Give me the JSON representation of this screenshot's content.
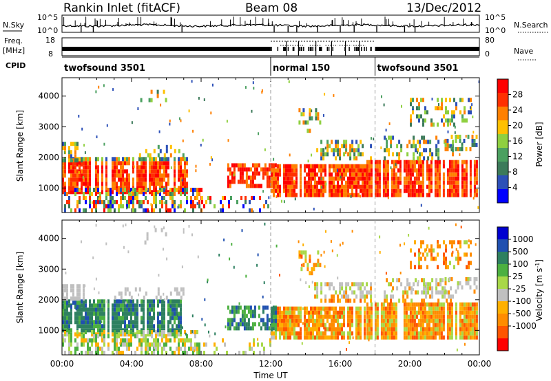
{
  "header": {
    "station": "Rankin Inlet (fitACF)",
    "beam": "Beam 08",
    "date": "13/Dec/2012"
  },
  "top_panels": {
    "nsky_label": "N.Sky",
    "nsky_ticks": [
      "10^5",
      "10^0"
    ],
    "nsky_right_ticks": [
      "10^5",
      "10^0"
    ],
    "nsearch_label": "N.Search",
    "freq_label_1": "Freq.",
    "freq_label_2": "[MHz]",
    "freq_ticks": [
      "18",
      "8"
    ],
    "nave_ticks": [
      "80",
      "0"
    ],
    "nave_label": "Nave",
    "cpid_label": "CPID",
    "modes": [
      {
        "name": "twofsound 3501",
        "start_h": 0,
        "end_h": 12
      },
      {
        "name": "normal 150",
        "start_h": 12,
        "end_h": 18
      },
      {
        "name": "twofsound 3501",
        "start_h": 18,
        "end_h": 24
      }
    ]
  },
  "colors": {
    "power_scale": [
      "#0000ff",
      "#2c50b8",
      "#3c7a5a",
      "#4ba060",
      "#8fd040",
      "#ffc000",
      "#ff8000",
      "#ff3000",
      "#ff0000"
    ],
    "velocity_scale": [
      "#ff0000",
      "#ff5500",
      "#ff8c00",
      "#ffb000",
      "#c0c0c0",
      "#a8d848",
      "#4cb040",
      "#2e8060",
      "#2050b0",
      "#0000d0"
    ]
  },
  "chart_data": [
    {
      "type": "heatmap",
      "name": "power",
      "ylabel": "Slant Range [km]",
      "y_ticks": [
        1000,
        2000,
        3000,
        4000
      ],
      "ylim": [
        200,
        4600
      ],
      "xlim": [
        0,
        24
      ],
      "colorbar": {
        "label": "Power [dB]",
        "ticks": [
          4,
          8,
          12,
          16,
          20,
          24,
          28
        ],
        "range": [
          0,
          32
        ]
      }
    },
    {
      "type": "heatmap",
      "name": "velocity",
      "ylabel": "Slant Range [km]",
      "y_ticks": [
        1000,
        2000,
        3000,
        4000
      ],
      "ylim": [
        200,
        4600
      ],
      "xlim": [
        0,
        24
      ],
      "xlabel": "Time UT",
      "x_ticks": [
        "00:00",
        "04:00",
        "08:00",
        "12:00",
        "16:00",
        "20:00",
        "00:00"
      ],
      "colorbar": {
        "label": "Velocity [m s^-1]",
        "ticks": [
          "1000",
          "500",
          "100",
          "25",
          "-25",
          "-100",
          "-500",
          "-1000"
        ]
      }
    }
  ]
}
